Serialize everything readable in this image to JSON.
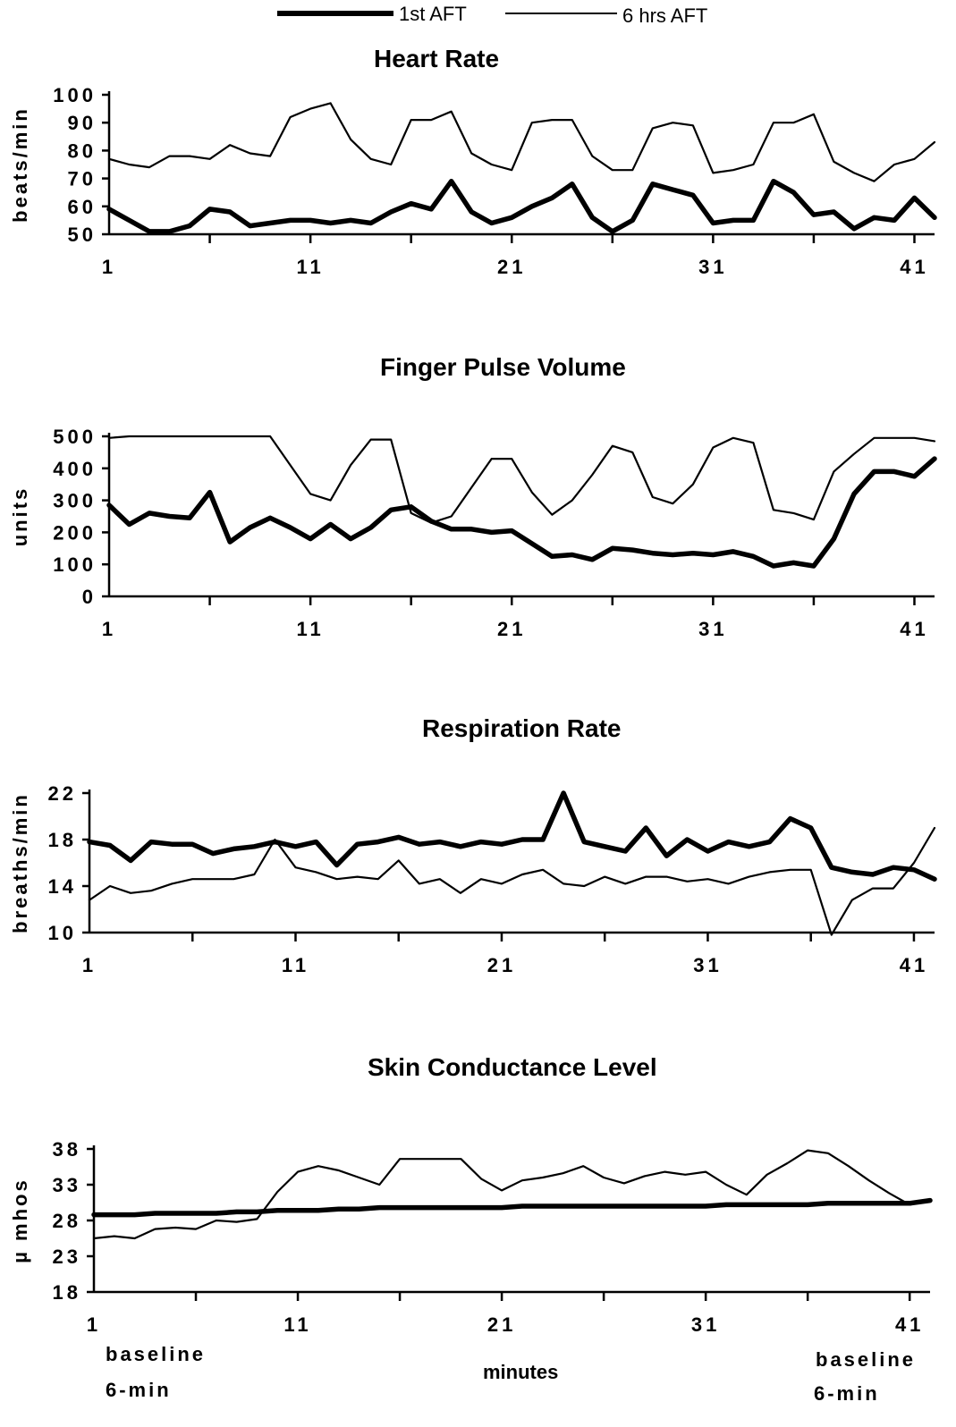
{
  "legend": {
    "series_1st": "1st AFT",
    "series_6hrs": "6 hrs AFT"
  },
  "footer": {
    "left_line1": "baseline",
    "left_line2": "6-min",
    "center": "minutes",
    "right_line1": "baseline",
    "right_line2": "6-min"
  },
  "chart_data": [
    {
      "type": "line",
      "title": "Heart Rate",
      "ylabel": "beats/min",
      "xlabel": "",
      "ylim": [
        50,
        100
      ],
      "yticks": [
        50,
        60,
        70,
        80,
        90,
        100
      ],
      "ytick_labels": [
        "50",
        "60",
        "70",
        "80",
        "90",
        "100"
      ],
      "xlim": [
        1,
        42
      ],
      "xticks": [
        1,
        11,
        21,
        31,
        41
      ],
      "series": [
        {
          "name": "1st AFT",
          "x": [
            1,
            2,
            3,
            4,
            5,
            6,
            7,
            8,
            9,
            10,
            11,
            12,
            13,
            14,
            15,
            16,
            17,
            18,
            19,
            20,
            21,
            22,
            23,
            24,
            25,
            26,
            27,
            28,
            29,
            30,
            31,
            32,
            33,
            34,
            35,
            36,
            37,
            38,
            39,
            40,
            41,
            42
          ],
          "values": [
            59,
            55,
            51,
            51,
            53,
            59,
            58,
            53,
            54,
            55,
            55,
            54,
            55,
            54,
            58,
            61,
            59,
            69,
            58,
            54,
            56,
            60,
            63,
            68,
            56,
            51,
            55,
            68,
            66,
            64,
            54,
            55,
            55,
            69,
            65,
            57,
            58,
            52,
            56,
            55,
            63,
            56
          ]
        },
        {
          "name": "6 hrs AFT",
          "x": [
            1,
            2,
            3,
            4,
            5,
            6,
            7,
            8,
            9,
            10,
            11,
            12,
            13,
            14,
            15,
            16,
            17,
            18,
            19,
            20,
            21,
            22,
            23,
            24,
            25,
            26,
            27,
            28,
            29,
            30,
            31,
            32,
            33,
            34,
            35,
            36,
            37,
            38,
            39,
            40,
            41,
            42
          ],
          "values": [
            77,
            75,
            74,
            78,
            78,
            77,
            82,
            79,
            78,
            92,
            95,
            97,
            84,
            77,
            75,
            91,
            91,
            94,
            79,
            75,
            73,
            90,
            91,
            91,
            78,
            73,
            73,
            88,
            90,
            89,
            72,
            73,
            75,
            90,
            90,
            93,
            76,
            72,
            69,
            75,
            77,
            83
          ]
        }
      ]
    },
    {
      "type": "line",
      "title": "Finger Pulse Volume",
      "ylabel": "units",
      "xlabel": "",
      "ylim": [
        0,
        500
      ],
      "yticks": [
        0,
        100,
        200,
        300,
        400,
        500
      ],
      "ytick_labels": [
        "0",
        "100",
        "200",
        "300",
        "400",
        "500"
      ],
      "xlim": [
        1,
        42
      ],
      "xticks": [
        1,
        11,
        21,
        31,
        41
      ],
      "series": [
        {
          "name": "1st AFT",
          "x": [
            1,
            2,
            3,
            4,
            5,
            6,
            7,
            8,
            9,
            10,
            11,
            12,
            13,
            14,
            15,
            16,
            17,
            18,
            19,
            20,
            21,
            22,
            23,
            24,
            25,
            26,
            27,
            28,
            29,
            30,
            31,
            32,
            33,
            34,
            35,
            36,
            37,
            38,
            39,
            40,
            41,
            42
          ],
          "values": [
            285,
            225,
            260,
            250,
            245,
            325,
            170,
            215,
            245,
            215,
            180,
            225,
            180,
            215,
            270,
            280,
            235,
            210,
            210,
            200,
            205,
            165,
            125,
            130,
            115,
            150,
            145,
            135,
            130,
            135,
            130,
            140,
            125,
            95,
            105,
            95,
            180,
            320,
            390,
            390,
            375,
            430
          ]
        },
        {
          "name": "6 hrs AFT",
          "x": [
            1,
            2,
            3,
            4,
            5,
            6,
            7,
            8,
            9,
            10,
            11,
            12,
            13,
            14,
            15,
            16,
            17,
            18,
            19,
            20,
            21,
            22,
            23,
            24,
            25,
            26,
            27,
            28,
            29,
            30,
            31,
            32,
            33,
            34,
            35,
            36,
            37,
            38,
            39,
            40,
            41,
            42
          ],
          "values": [
            495,
            500,
            500,
            500,
            500,
            500,
            500,
            500,
            500,
            410,
            320,
            300,
            410,
            490,
            490,
            260,
            230,
            250,
            340,
            430,
            430,
            325,
            255,
            300,
            380,
            470,
            450,
            310,
            290,
            350,
            465,
            495,
            480,
            270,
            260,
            240,
            390,
            445,
            495,
            495,
            495,
            485
          ]
        }
      ]
    },
    {
      "type": "line",
      "title": "Respiration Rate",
      "ylabel": "breaths/min",
      "xlabel": "",
      "ylim": [
        10,
        22
      ],
      "yticks": [
        10,
        14,
        18,
        22
      ],
      "ytick_labels": [
        "10",
        "14",
        "18",
        "22"
      ],
      "xlim": [
        1,
        42
      ],
      "xticks": [
        1,
        11,
        21,
        31,
        41
      ],
      "series": [
        {
          "name": "1st AFT",
          "x": [
            1,
            2,
            3,
            4,
            5,
            6,
            7,
            8,
            9,
            10,
            11,
            12,
            13,
            14,
            15,
            16,
            17,
            18,
            19,
            20,
            21,
            22,
            23,
            24,
            25,
            26,
            27,
            28,
            29,
            30,
            31,
            32,
            33,
            34,
            35,
            36,
            37,
            38,
            39,
            40,
            41,
            42
          ],
          "values": [
            17.8,
            17.5,
            16.2,
            17.8,
            17.6,
            17.6,
            16.8,
            17.2,
            17.4,
            17.8,
            17.4,
            17.8,
            15.8,
            17.6,
            17.8,
            18.2,
            17.6,
            17.8,
            17.4,
            17.8,
            17.6,
            18.0,
            18.0,
            22.0,
            17.8,
            17.4,
            17.0,
            19.0,
            16.6,
            18.0,
            17.0,
            17.8,
            17.4,
            17.8,
            19.8,
            19.0,
            15.6,
            15.2,
            15.0,
            15.6,
            15.4,
            14.6
          ]
        },
        {
          "name": "6 hrs AFT",
          "x": [
            1,
            2,
            3,
            4,
            5,
            6,
            7,
            8,
            9,
            10,
            11,
            12,
            13,
            14,
            15,
            16,
            17,
            18,
            19,
            20,
            21,
            22,
            23,
            24,
            25,
            26,
            27,
            28,
            29,
            30,
            31,
            32,
            33,
            34,
            35,
            36,
            37,
            38,
            39,
            40,
            41,
            42
          ],
          "values": [
            12.8,
            14.0,
            13.4,
            13.6,
            14.2,
            14.6,
            14.6,
            14.6,
            15.0,
            18.0,
            15.6,
            15.2,
            14.6,
            14.8,
            14.6,
            16.2,
            14.2,
            14.6,
            13.4,
            14.6,
            14.2,
            15.0,
            15.4,
            14.2,
            14.0,
            14.8,
            14.2,
            14.8,
            14.8,
            14.4,
            14.6,
            14.2,
            14.8,
            15.2,
            15.4,
            15.4,
            9.8,
            12.8,
            13.8,
            13.8,
            16.0,
            19.0
          ]
        }
      ]
    },
    {
      "type": "line",
      "title": "Skin Conductance Level",
      "ylabel": "µ mhos",
      "xlabel": "minutes",
      "ylim": [
        18,
        40
      ],
      "yticks": [
        18,
        23,
        28,
        33,
        38
      ],
      "ytick_labels": [
        "18",
        "23",
        "28",
        "33",
        "38"
      ],
      "xlim": [
        1,
        42
      ],
      "xticks": [
        1,
        11,
        21,
        31,
        41
      ],
      "series": [
        {
          "name": "1st AFT",
          "x": [
            1,
            2,
            3,
            4,
            5,
            6,
            7,
            8,
            9,
            10,
            11,
            12,
            13,
            14,
            15,
            16,
            17,
            18,
            19,
            20,
            21,
            22,
            23,
            24,
            25,
            26,
            27,
            28,
            29,
            30,
            31,
            32,
            33,
            34,
            35,
            36,
            37,
            38,
            39,
            40,
            41,
            42
          ],
          "values": [
            28.8,
            28.8,
            28.8,
            29.0,
            29.0,
            29.0,
            29.0,
            29.2,
            29.2,
            29.4,
            29.4,
            29.4,
            29.6,
            29.6,
            29.8,
            29.8,
            29.8,
            29.8,
            29.8,
            29.8,
            29.8,
            30.0,
            30.0,
            30.0,
            30.0,
            30.0,
            30.0,
            30.0,
            30.0,
            30.0,
            30.0,
            30.2,
            30.2,
            30.2,
            30.2,
            30.2,
            30.4,
            30.4,
            30.4,
            30.4,
            30.4,
            30.8
          ]
        },
        {
          "name": "6 hrs AFT",
          "x": [
            1,
            2,
            3,
            4,
            5,
            6,
            7,
            8,
            9,
            10,
            11,
            12,
            13,
            14,
            15,
            16,
            17,
            18,
            19,
            20,
            21,
            22,
            23,
            24,
            25,
            26,
            27,
            28,
            29,
            30,
            31,
            32,
            33,
            34,
            35,
            36,
            37,
            38,
            39,
            40,
            41,
            42
          ],
          "values": [
            25.5,
            25.8,
            25.5,
            26.8,
            27.0,
            26.8,
            28.0,
            27.8,
            28.2,
            32.0,
            34.8,
            35.6,
            35.0,
            34.0,
            33.0,
            36.6,
            36.6,
            36.6,
            36.6,
            33.8,
            32.2,
            33.6,
            34.0,
            34.6,
            35.6,
            34.0,
            33.2,
            34.2,
            34.8,
            34.4,
            34.8,
            33.0,
            31.6,
            34.4,
            36.0,
            37.8,
            37.4,
            35.6,
            33.6,
            31.8,
            30.2,
            30.8
          ]
        }
      ]
    }
  ]
}
